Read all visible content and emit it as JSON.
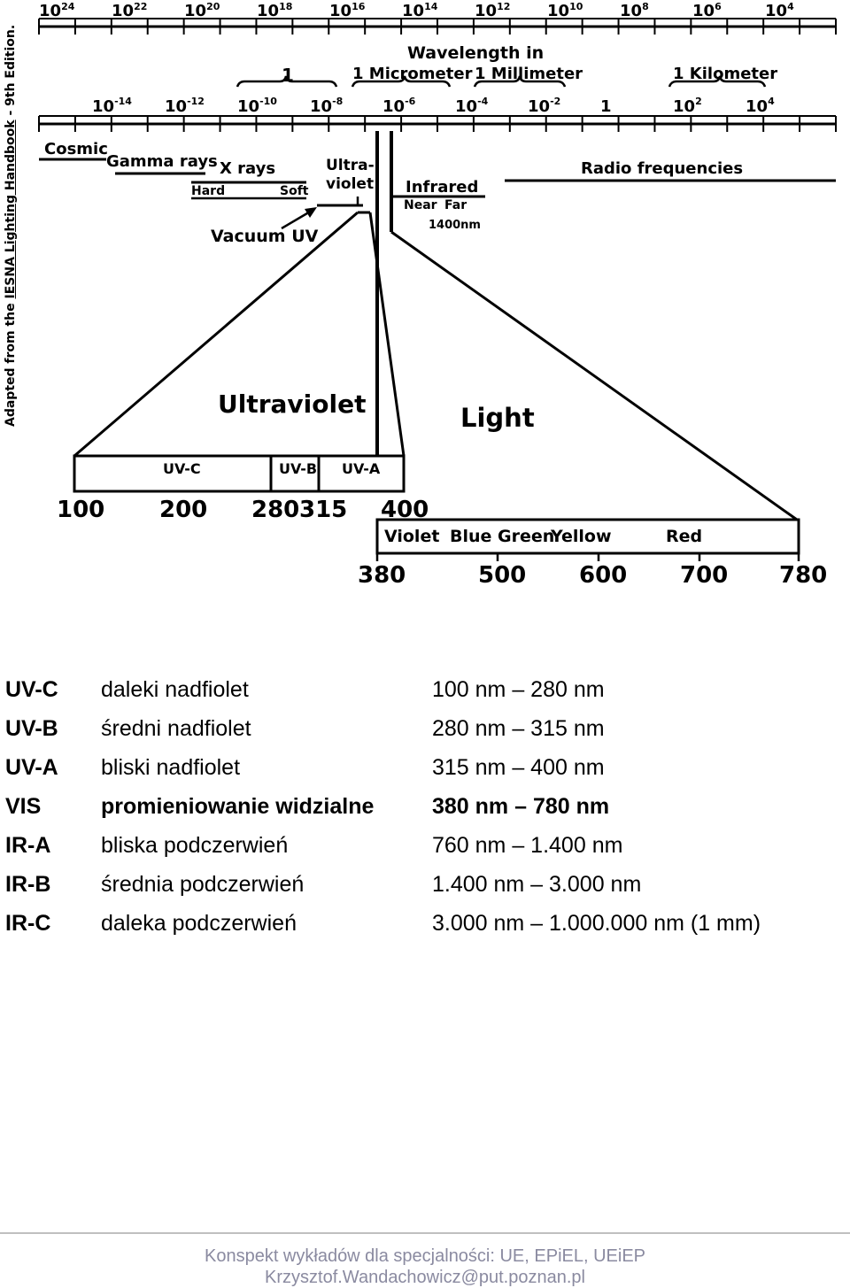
{
  "freq_exponents": [
    "24",
    "22",
    "20",
    "18",
    "16",
    "14",
    "12",
    "10",
    "8",
    "6",
    "4"
  ],
  "wavelength_ticks": [
    {
      "base": "10",
      "exp": "-14"
    },
    {
      "base": "10",
      "exp": "-12"
    },
    {
      "base": "10",
      "exp": "-10"
    },
    {
      "base": "10",
      "exp": "-8"
    },
    {
      "base": "10",
      "exp": "-6"
    },
    {
      "base": "10",
      "exp": "-4"
    },
    {
      "base": "10",
      "exp": "-2"
    },
    {
      "base": "1",
      "exp": ""
    },
    {
      "base": "10",
      "exp": "2"
    },
    {
      "base": "10",
      "exp": "4"
    }
  ],
  "wavelength_heading": "Wavelength in",
  "units": {
    "one": "1",
    "micrometer": "1 Micrometer",
    "millimeter": "1 Millimeter",
    "kilometer": "1 Kilometer"
  },
  "bands": {
    "cosmic": "Cosmic",
    "gamma": "Gamma rays",
    "xrays": "X rays",
    "hard": "Hard",
    "soft": "Soft",
    "ultra1": "Ultra-",
    "ultra2": "violet",
    "infrared": "Infrared",
    "near": "Near",
    "far": "Far",
    "nm1400": "1400nm",
    "radio": "Radio frequencies",
    "vacuum_uv": "Vacuum UV"
  },
  "zoom": {
    "ultraviolet": "Ultraviolet",
    "light": "Light",
    "uvc": "UV-C",
    "uvb": "UV-B",
    "uva": "UV-A",
    "uv_scale": [
      "100",
      "200",
      "280",
      "315",
      "400"
    ],
    "colors": [
      "Violet",
      "Blue",
      "Green",
      "Yellow",
      "Red"
    ],
    "vis_scale": [
      "380",
      "500",
      "600",
      "700",
      "780"
    ]
  },
  "side_note": {
    "prefix": "Adapted from the ",
    "source": "IESNA Lighting Handbook",
    "suffix": " - 9th Edition."
  },
  "definitions": [
    {
      "code": "UV-C",
      "desc": "daleki nadfiolet",
      "range": "100 nm – 280 nm",
      "bold": false
    },
    {
      "code": "UV-B",
      "desc": "średni nadfiolet",
      "range": "280 nm – 315 nm",
      "bold": false
    },
    {
      "code": "UV-A",
      "desc": "bliski nadfiolet",
      "range": "315 nm – 400 nm",
      "bold": false
    },
    {
      "code": "VIS",
      "desc": "promieniowanie widzialne",
      "range": "380 nm – 780 nm",
      "bold": true
    },
    {
      "code": "IR-A",
      "desc": "bliska podczerwień",
      "range": "760 nm – 1.400 nm",
      "bold": false
    },
    {
      "code": "IR-B",
      "desc": "średnia podczerwień",
      "range": "1.400 nm – 3.000 nm",
      "bold": false
    },
    {
      "code": "IR-C",
      "desc": "daleka podczerwień",
      "range": "3.000 nm – 1.000.000 nm (1 mm)",
      "bold": false
    }
  ],
  "footer": {
    "line1": "Konspekt wykładów dla specjalności: UE, EPiEL, UEiEP",
    "line2": "Krzysztof.Wandachowicz@put.poznan.pl"
  }
}
